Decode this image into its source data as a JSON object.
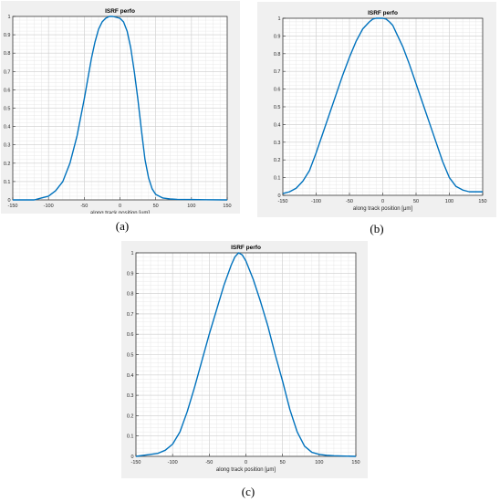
{
  "chart_data": [
    {
      "type": "line",
      "title": "ISRF perfo",
      "xlabel": "along track position [μm]",
      "ylabel": "",
      "xlim": [
        -150,
        150
      ],
      "ylim": [
        0,
        1
      ],
      "xticks": [
        "-150",
        "-100",
        "-50",
        "0",
        "50",
        "100",
        "150"
      ],
      "yticks": [
        "0",
        "0.1",
        "0.2",
        "0.3",
        "0.4",
        "0.5",
        "0.6",
        "0.7",
        "0.8",
        "0.9",
        "1"
      ],
      "grid": true,
      "caption": "(a)",
      "color": "#0072bd",
      "series": [
        {
          "x": [
            -150,
            -120,
            -110,
            -100,
            -90,
            -80,
            -70,
            -60,
            -50,
            -45,
            -40,
            -35,
            -30,
            -25,
            -20,
            -15,
            -10,
            -5,
            0,
            5,
            10,
            15,
            20,
            25,
            30,
            35,
            40,
            45,
            50,
            55,
            60,
            70,
            80,
            100,
            120,
            150
          ],
          "y": [
            0.0,
            0.0,
            0.01,
            0.02,
            0.05,
            0.1,
            0.2,
            0.35,
            0.55,
            0.66,
            0.77,
            0.86,
            0.93,
            0.97,
            0.99,
            1.0,
            1.0,
            0.995,
            0.99,
            0.97,
            0.92,
            0.83,
            0.7,
            0.55,
            0.38,
            0.22,
            0.12,
            0.06,
            0.03,
            0.02,
            0.01,
            0.005,
            0.003,
            0.002,
            0.001,
            0.0
          ]
        }
      ]
    },
    {
      "type": "line",
      "title": "ISRF perfo",
      "xlabel": "along track position [μm]",
      "ylabel": "",
      "xlim": [
        -150,
        150
      ],
      "ylim": [
        0,
        1
      ],
      "xticks": [
        "-150",
        "-100",
        "-50",
        "0",
        "50",
        "100",
        "150"
      ],
      "yticks": [
        "0",
        "0.1",
        "0.2",
        "0.3",
        "0.4",
        "0.5",
        "0.6",
        "0.7",
        "0.8",
        "0.9",
        "1"
      ],
      "grid": true,
      "caption": "(b)",
      "color": "#0072bd",
      "series": [
        {
          "x": [
            -150,
            -140,
            -130,
            -120,
            -110,
            -100,
            -90,
            -80,
            -70,
            -60,
            -50,
            -40,
            -30,
            -20,
            -15,
            -10,
            -5,
            0,
            5,
            10,
            15,
            20,
            30,
            40,
            50,
            60,
            70,
            80,
            90,
            100,
            110,
            120,
            130,
            140,
            150
          ],
          "y": [
            0.01,
            0.02,
            0.04,
            0.08,
            0.14,
            0.24,
            0.35,
            0.46,
            0.57,
            0.68,
            0.78,
            0.87,
            0.94,
            0.98,
            0.995,
            1.0,
            1.0,
            1.0,
            0.995,
            0.98,
            0.96,
            0.92,
            0.84,
            0.74,
            0.63,
            0.52,
            0.41,
            0.3,
            0.19,
            0.1,
            0.05,
            0.03,
            0.02,
            0.02,
            0.02
          ]
        }
      ]
    },
    {
      "type": "line",
      "title": "ISRF perfo",
      "xlabel": "along track position [μm]",
      "ylabel": "",
      "xlim": [
        -150,
        150
      ],
      "ylim": [
        0,
        1
      ],
      "xticks": [
        "-150",
        "-100",
        "-50",
        "0",
        "50",
        "100",
        "150"
      ],
      "yticks": [
        "0",
        "0.1",
        "0.2",
        "0.3",
        "0.4",
        "0.5",
        "0.6",
        "0.7",
        "0.8",
        "0.9",
        "1"
      ],
      "grid": true,
      "caption": "(c)",
      "color": "#0072bd",
      "series": [
        {
          "x": [
            -150,
            -130,
            -120,
            -110,
            -100,
            -90,
            -80,
            -70,
            -60,
            -50,
            -40,
            -30,
            -20,
            -15,
            -10,
            -5,
            0,
            10,
            20,
            30,
            40,
            50,
            60,
            70,
            80,
            90,
            100,
            110,
            120,
            150
          ],
          "y": [
            0.0,
            0.01,
            0.015,
            0.03,
            0.06,
            0.12,
            0.22,
            0.34,
            0.47,
            0.6,
            0.72,
            0.84,
            0.94,
            0.98,
            1.0,
            0.99,
            0.96,
            0.87,
            0.76,
            0.64,
            0.5,
            0.37,
            0.23,
            0.12,
            0.05,
            0.02,
            0.01,
            0.005,
            0.003,
            0.0
          ]
        }
      ]
    }
  ]
}
